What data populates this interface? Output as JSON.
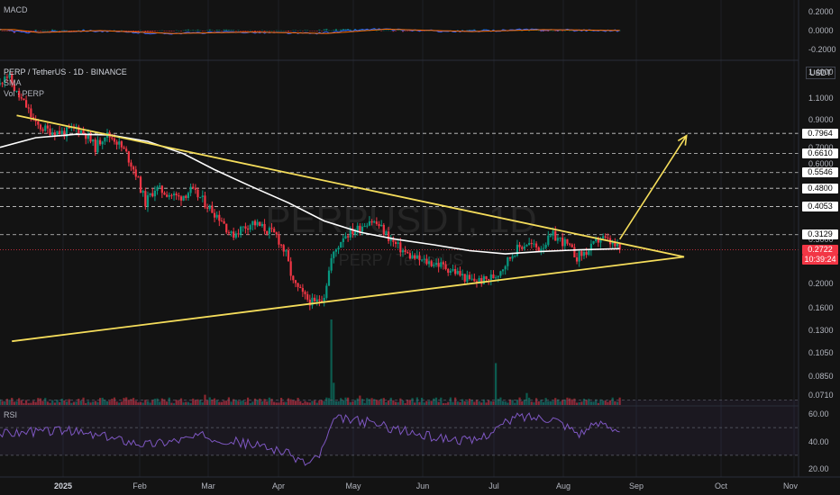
{
  "header": {
    "symbol": "PERP / TetherUS · 1D · BINANCE",
    "sma_label": "SMA",
    "vol_label": "Vol · PERP",
    "currency": "USDT",
    "watermark": "PERPUSDT, 1D",
    "watermark_sub": "PERP / TetherUS"
  },
  "macd": {
    "label": "MACD",
    "ticks": [
      "0.2000",
      "0.0000",
      "-0.2000"
    ]
  },
  "rsi": {
    "label": "RSI",
    "ticks": [
      "60.00",
      "40.00",
      "20.00"
    ]
  },
  "price_axis": {
    "ticks": [
      "1.4000",
      "1.1000",
      "0.9000",
      "0.7000",
      "0.6000",
      "0.3000",
      "0.2000",
      "0.1600",
      "0.1300",
      "0.1050",
      "0.0850",
      "0.0710"
    ]
  },
  "levels": [
    {
      "label": "0.7964",
      "value": 0.7964
    },
    {
      "label": "0.6610",
      "value": 0.661
    },
    {
      "label": "0.5546",
      "value": 0.5546
    },
    {
      "label": "0.4800",
      "value": 0.48
    },
    {
      "label": "0.4053",
      "value": 0.4053
    },
    {
      "label": "0.3129",
      "value": 0.3129
    }
  ],
  "last_price": {
    "label": "0.2722",
    "value": 0.2722,
    "countdown": "10:39:24",
    "color": "#f23645"
  },
  "x_axis": {
    "ticks": [
      "2025",
      "Feb",
      "Mar",
      "Apr",
      "May",
      "Jun",
      "Jul",
      "Aug",
      "Sep",
      "Oct",
      "Nov"
    ]
  },
  "colors": {
    "up": "#089981",
    "down": "#f23645",
    "trendline": "#f5dd5b",
    "sma": "#ffffff",
    "level": "#ffffff",
    "pill_bg": "#ffffff",
    "pill_text": "#000000",
    "rsi_line": "#7e57c2",
    "macd_line": "#2962ff",
    "signal_line": "#ff6d00",
    "background": "#131313"
  },
  "chart_data": {
    "type": "candlestick",
    "symbol": "PERP / TetherUS",
    "interval": "1D",
    "exchange": "BINANCE",
    "scale": "log",
    "ylim": [
      0.065,
      1.55
    ],
    "x_range": [
      "2024-12-05",
      "2025-11-05"
    ],
    "last_close": 0.2722,
    "price_path": [
      [
        "2024-12-05",
        1.25
      ],
      [
        "2024-12-07",
        1.38
      ],
      [
        "2024-12-09",
        1.32
      ],
      [
        "2024-12-12",
        1.15
      ],
      [
        "2024-12-16",
        1.02
      ],
      [
        "2024-12-20",
        0.86
      ],
      [
        "2024-12-25",
        0.82
      ],
      [
        "2025-01-01",
        0.8
      ],
      [
        "2025-01-06",
        0.84
      ],
      [
        "2025-01-10",
        0.79
      ],
      [
        "2025-01-14",
        0.7
      ],
      [
        "2025-01-18",
        0.79
      ],
      [
        "2025-01-22",
        0.76
      ],
      [
        "2025-01-27",
        0.66
      ],
      [
        "2025-01-31",
        0.55
      ],
      [
        "2025-02-04",
        0.42
      ],
      [
        "2025-02-08",
        0.48
      ],
      [
        "2025-02-13",
        0.46
      ],
      [
        "2025-02-18",
        0.44
      ],
      [
        "2025-02-23",
        0.47
      ],
      [
        "2025-02-27",
        0.44
      ],
      [
        "2025-03-03",
        0.4
      ],
      [
        "2025-03-08",
        0.36
      ],
      [
        "2025-03-12",
        0.31
      ],
      [
        "2025-03-16",
        0.33
      ],
      [
        "2025-03-21",
        0.35
      ],
      [
        "2025-03-26",
        0.33
      ],
      [
        "2025-03-31",
        0.31
      ],
      [
        "2025-04-04",
        0.26
      ],
      [
        "2025-04-07",
        0.2
      ],
      [
        "2025-04-12",
        0.175
      ],
      [
        "2025-04-16",
        0.165
      ],
      [
        "2025-04-20",
        0.18
      ],
      [
        "2025-04-23",
        0.25
      ],
      [
        "2025-04-28",
        0.31
      ],
      [
        "2025-05-04",
        0.33
      ],
      [
        "2025-05-09",
        0.36
      ],
      [
        "2025-05-13",
        0.34
      ],
      [
        "2025-05-19",
        0.29
      ],
      [
        "2025-05-25",
        0.26
      ],
      [
        "2025-05-31",
        0.245
      ],
      [
        "2025-06-06",
        0.24
      ],
      [
        "2025-06-13",
        0.225
      ],
      [
        "2025-06-20",
        0.205
      ],
      [
        "2025-06-26",
        0.205
      ],
      [
        "2025-07-01",
        0.215
      ],
      [
        "2025-07-05",
        0.24
      ],
      [
        "2025-07-09",
        0.27
      ],
      [
        "2025-07-14",
        0.29
      ],
      [
        "2025-07-19",
        0.275
      ],
      [
        "2025-07-25",
        0.31
      ],
      [
        "2025-07-30",
        0.29
      ],
      [
        "2025-08-04",
        0.255
      ],
      [
        "2025-08-09",
        0.27
      ],
      [
        "2025-08-14",
        0.305
      ],
      [
        "2025-08-18",
        0.29
      ],
      [
        "2025-08-22",
        0.2722
      ]
    ],
    "sma_path": [
      [
        "2024-12-05",
        0.7
      ],
      [
        "2024-12-20",
        0.765
      ],
      [
        "2025-01-06",
        0.79
      ],
      [
        "2025-01-20",
        0.785
      ],
      [
        "2025-02-05",
        0.74
      ],
      [
        "2025-02-20",
        0.66
      ],
      [
        "2025-03-05",
        0.57
      ],
      [
        "2025-03-20",
        0.49
      ],
      [
        "2025-04-05",
        0.42
      ],
      [
        "2025-04-20",
        0.355
      ],
      [
        "2025-05-05",
        0.32
      ],
      [
        "2025-05-20",
        0.3
      ],
      [
        "2025-06-05",
        0.285
      ],
      [
        "2025-06-20",
        0.27
      ],
      [
        "2025-07-05",
        0.262
      ],
      [
        "2025-07-20",
        0.268
      ],
      [
        "2025-08-05",
        0.272
      ],
      [
        "2025-08-22",
        0.275
      ]
    ],
    "triangle": {
      "upper": [
        [
          "2024-12-12",
          0.94
        ],
        [
          "2025-09-18",
          0.255
        ]
      ],
      "lower": [
        [
          "2024-12-10",
          0.117
        ],
        [
          "2025-09-18",
          0.255
        ]
      ]
    },
    "projection_arrow": [
      [
        "2025-08-22",
        0.3
      ],
      [
        "2025-09-19",
        0.78
      ]
    ],
    "volume_spikes": [
      [
        "2025-04-23",
        1.0
      ],
      [
        "2025-07-01",
        0.49
      ],
      [
        "2025-04-24",
        0.26
      ],
      [
        "2025-07-14",
        0.14
      ],
      [
        "2025-03-01",
        0.12
      ],
      [
        "2025-05-05",
        0.11
      ]
    ],
    "rsi_range": [
      15,
      65
    ],
    "rsi_path": [
      [
        "2024-12-05",
        46
      ],
      [
        "2025-01-01",
        48
      ],
      [
        "2025-02-05",
        38
      ],
      [
        "2025-03-01",
        44
      ],
      [
        "2025-04-01",
        34
      ],
      [
        "2025-04-13",
        24
      ],
      [
        "2025-04-18",
        30
      ],
      [
        "2025-04-25",
        57
      ],
      [
        "2025-05-08",
        54
      ],
      [
        "2025-06-01",
        44
      ],
      [
        "2025-06-22",
        40
      ],
      [
        "2025-07-10",
        58
      ],
      [
        "2025-07-25",
        57
      ],
      [
        "2025-08-05",
        46
      ],
      [
        "2025-08-15",
        54
      ],
      [
        "2025-08-22",
        48
      ]
    ],
    "rsi_bands": [
      70,
      50,
      30
    ],
    "macd_range": [
      -0.3,
      0.3
    ],
    "macd_path": [
      [
        "2024-12-05",
        0.01
      ],
      [
        "2024-12-15",
        -0.02
      ],
      [
        "2025-01-10",
        0.0
      ],
      [
        "2025-02-10",
        -0.03
      ],
      [
        "2025-03-15",
        -0.015
      ],
      [
        "2025-04-15",
        -0.03
      ],
      [
        "2025-05-10",
        0.015
      ],
      [
        "2025-06-15",
        -0.01
      ],
      [
        "2025-07-15",
        0.01
      ],
      [
        "2025-08-22",
        0.0
      ]
    ],
    "levels": [
      0.7964,
      0.661,
      0.5546,
      0.48,
      0.4053,
      0.3129
    ]
  }
}
